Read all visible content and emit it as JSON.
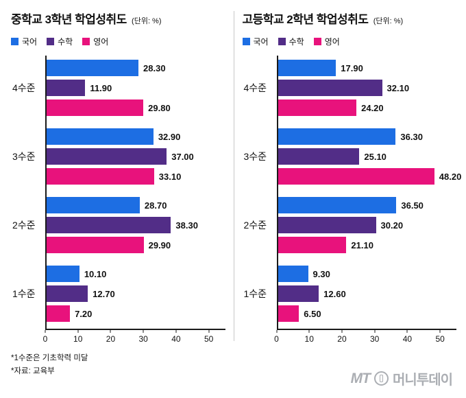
{
  "chart_data": [
    {
      "type": "bar",
      "orientation": "horizontal",
      "title": "중학교 3학년 학업성취도",
      "unit_label": "(단위: %)",
      "categories": [
        "4수준",
        "3수준",
        "2수준",
        "1수준"
      ],
      "series": [
        {
          "name": "국어",
          "color": "#1d6ee3",
          "values": [
            28.3,
            32.9,
            28.7,
            10.1
          ]
        },
        {
          "name": "수학",
          "color": "#522d87",
          "values": [
            11.9,
            37.0,
            38.3,
            12.7
          ]
        },
        {
          "name": "영어",
          "color": "#e8127c",
          "values": [
            29.8,
            33.1,
            29.9,
            7.2
          ]
        }
      ],
      "xticks": [
        0,
        10,
        20,
        30,
        40,
        50
      ],
      "xmax": 55,
      "legend_position": "top",
      "grid": false
    },
    {
      "type": "bar",
      "orientation": "horizontal",
      "title": "고등학교 2학년 학업성취도",
      "unit_label": "(단위: %)",
      "categories": [
        "4수준",
        "3수준",
        "2수준",
        "1수준"
      ],
      "series": [
        {
          "name": "국어",
          "color": "#1d6ee3",
          "values": [
            17.9,
            36.3,
            36.5,
            9.3
          ]
        },
        {
          "name": "수학",
          "color": "#522d87",
          "values": [
            32.1,
            25.1,
            30.2,
            12.6
          ]
        },
        {
          "name": "영어",
          "color": "#e8127c",
          "values": [
            24.2,
            48.2,
            21.1,
            6.5
          ]
        }
      ],
      "xticks": [
        0,
        10,
        20,
        30,
        40,
        50
      ],
      "xmax": 55,
      "legend_position": "top",
      "grid": false
    }
  ],
  "footer": {
    "note1": "*1수준은 기초학력 미달",
    "note2": "*자료: 교육부",
    "logo_mt": "MT",
    "logo_text": "머니투데이"
  }
}
